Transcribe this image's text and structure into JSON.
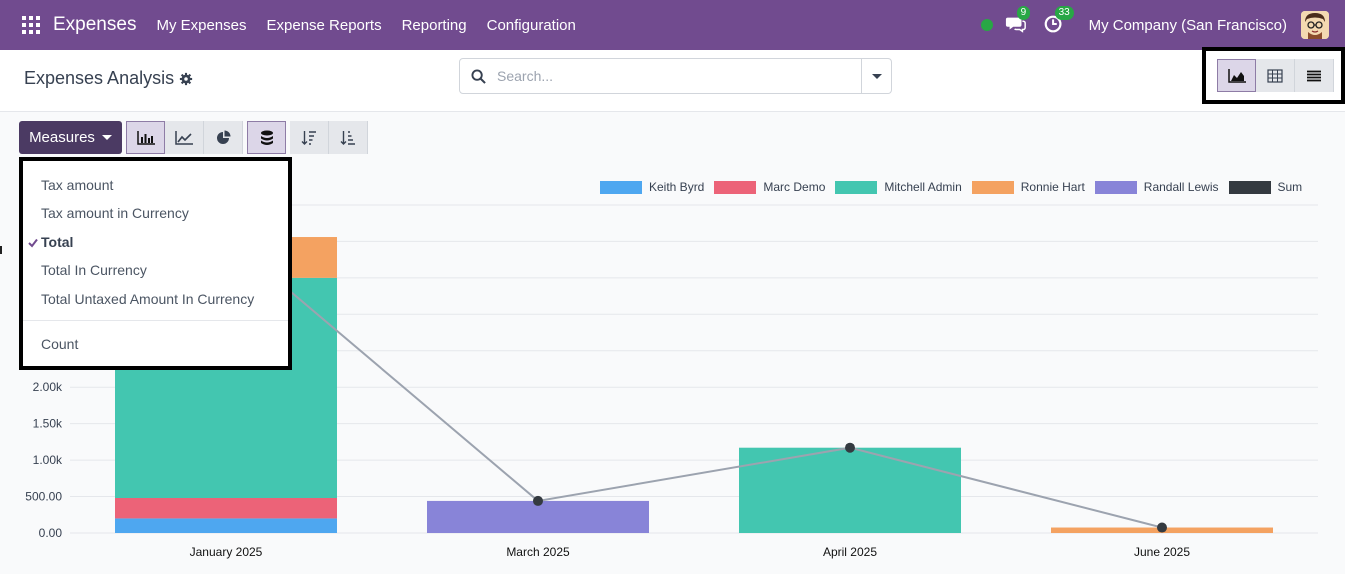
{
  "navbar": {
    "app_name": "Expenses",
    "menu": [
      "My Expenses",
      "Expense Reports",
      "Reporting",
      "Configuration"
    ],
    "messages_count": "9",
    "activities_count": "33",
    "company": "My Company (San Francisco)",
    "brand_color": "#714b8f"
  },
  "control_panel": {
    "title": "Expenses Analysis",
    "search_placeholder": "Search..."
  },
  "toolbar": {
    "measures_label": "Measures"
  },
  "measures_menu": {
    "items": [
      {
        "label": "Tax amount",
        "selected": false
      },
      {
        "label": "Tax amount in Currency",
        "selected": false
      },
      {
        "label": "Total",
        "selected": true
      },
      {
        "label": "Total In Currency",
        "selected": false
      },
      {
        "label": "Total Untaxed Amount In Currency",
        "selected": false
      }
    ],
    "count_label": "Count"
  },
  "chart_data": {
    "type": "bar",
    "stacked": true,
    "categories": [
      "January 2025",
      "March 2025",
      "April 2025",
      "June 2025"
    ],
    "series": [
      {
        "name": "Keith Byrd",
        "color": "#4ea7f0",
        "values": [
          200,
          0,
          0,
          0
        ]
      },
      {
        "name": "Marc Demo",
        "color": "#ec6378",
        "values": [
          280,
          0,
          0,
          0
        ]
      },
      {
        "name": "Mitchell Admin",
        "color": "#43c6b0",
        "values": [
          3020,
          0,
          1170,
          0
        ]
      },
      {
        "name": "Ronnie Hart",
        "color": "#f4a261",
        "values": [
          560,
          0,
          0,
          75
        ]
      },
      {
        "name": "Randall Lewis",
        "color": "#8884d8",
        "values": [
          0,
          440,
          0,
          0
        ]
      }
    ],
    "sum_series": {
      "name": "Sum",
      "color": "#343a40",
      "values": [
        4060,
        440,
        1170,
        75
      ]
    },
    "y_ticks": [
      "0.00",
      "500.00",
      "1.00k",
      "1.50k",
      "2.00k"
    ],
    "ylim": [
      0,
      4500
    ],
    "grid": true,
    "legend_position": "top-right"
  }
}
